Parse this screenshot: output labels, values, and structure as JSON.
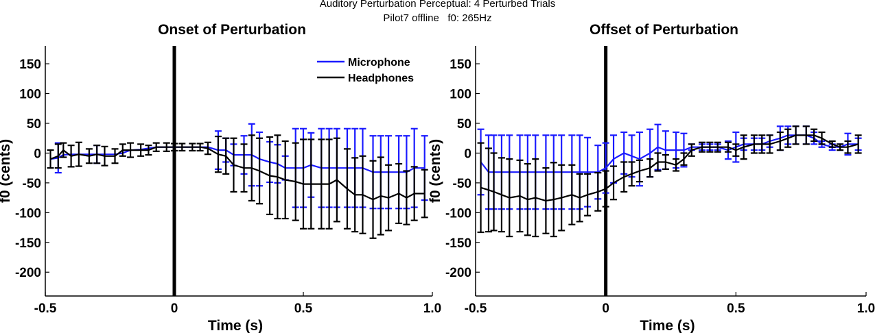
{
  "figure": {
    "title": "Auditory Perturbation Perceptual: 4 Perturbed Trials",
    "subtitle": "Pilot7 offline   f0: 265Hz"
  },
  "colors": {
    "microphone": "#1a1aff",
    "headphones": "#000000",
    "axis": "#000000"
  },
  "chart_data": [
    {
      "type": "line",
      "title": "Onset of Perturbation",
      "xlabel": "Time (s)",
      "ylabel": "f0 (cents)",
      "xlim": [
        -0.5,
        1.0
      ],
      "ylim": [
        -240,
        180
      ],
      "xticks": [
        -0.5,
        0,
        0.5,
        1.0
      ],
      "xtick_labels": [
        "-0.5",
        "0",
        "0.5",
        "1.0"
      ],
      "yticks": [
        150,
        100,
        50,
        0,
        -50,
        -100,
        -150,
        -200
      ],
      "ytick_labels": [
        "150",
        "100",
        "50",
        "0",
        "-50",
        "-100",
        "-150",
        "-200"
      ],
      "vline_x": 0,
      "legend": {
        "placement": "top-right",
        "entries": [
          "Microphone",
          "Headphones"
        ]
      },
      "series": [
        {
          "name": "Microphone",
          "color": "#1a1aff",
          "x": [
            -0.48,
            -0.45,
            -0.43,
            -0.4,
            -0.37,
            -0.33,
            -0.3,
            -0.27,
            -0.23,
            -0.2,
            -0.17,
            -0.13,
            -0.1,
            -0.07,
            -0.03,
            0,
            0.03,
            0.07,
            0.1,
            0.13,
            0.17,
            0.2,
            0.23,
            0.27,
            0.3,
            0.33,
            0.37,
            0.4,
            0.43,
            0.47,
            0.5,
            0.53,
            0.57,
            0.6,
            0.63,
            0.67,
            0.7,
            0.73,
            0.77,
            0.8,
            0.83,
            0.87,
            0.9,
            0.93,
            0.97
          ],
          "y": [
            -10,
            -8,
            -3,
            -2,
            -2,
            -2,
            -2,
            -2,
            -2,
            0,
            5,
            6,
            8,
            10,
            10,
            10,
            10,
            10,
            10,
            10,
            5,
            5,
            -3,
            -3,
            -3,
            -10,
            -15,
            -18,
            -25,
            -25,
            -25,
            -20,
            -25,
            -25,
            -25,
            -25,
            -25,
            -25,
            -32,
            -32,
            -32,
            -32,
            -32,
            -25,
            -25
          ],
          "err": [
            0,
            25,
            0,
            0,
            0,
            0,
            15,
            0,
            0,
            0,
            0,
            0,
            0,
            0,
            0,
            0,
            0,
            0,
            0,
            0,
            32,
            20,
            18,
            32,
            52,
            45,
            34,
            32,
            20,
            66,
            66,
            54,
            66,
            66,
            66,
            66,
            66,
            66,
            61,
            61,
            61,
            61,
            61,
            66,
            54
          ]
        },
        {
          "name": "Headphones",
          "color": "#000000",
          "x": [
            -0.48,
            -0.45,
            -0.43,
            -0.4,
            -0.37,
            -0.33,
            -0.3,
            -0.27,
            -0.23,
            -0.2,
            -0.17,
            -0.13,
            -0.1,
            -0.07,
            -0.03,
            0,
            0.03,
            0.07,
            0.1,
            0.13,
            0.17,
            0.2,
            0.23,
            0.27,
            0.3,
            0.33,
            0.37,
            0.4,
            0.43,
            0.47,
            0.5,
            0.53,
            0.57,
            0.6,
            0.63,
            0.67,
            0.7,
            0.73,
            0.77,
            0.8,
            0.83,
            0.87,
            0.9,
            0.93,
            0.97
          ],
          "y": [
            -10,
            -5,
            5,
            -5,
            -2,
            -5,
            -2,
            -5,
            -5,
            5,
            5,
            5,
            5,
            10,
            10,
            10,
            10,
            10,
            10,
            8,
            -2,
            -5,
            -20,
            -25,
            -25,
            -30,
            -38,
            -40,
            -45,
            -48,
            -52,
            -52,
            -52,
            -52,
            -45,
            -60,
            -70,
            -70,
            -78,
            -72,
            -75,
            -68,
            -75,
            -68,
            -68
          ],
          "err": [
            15,
            20,
            12,
            18,
            20,
            12,
            15,
            16,
            12,
            10,
            12,
            10,
            8,
            7,
            7,
            6,
            6,
            6,
            6,
            10,
            30,
            30,
            45,
            40,
            55,
            55,
            65,
            70,
            65,
            65,
            75,
            75,
            75,
            75,
            70,
            67,
            62,
            65,
            65,
            65,
            55,
            50,
            45,
            45,
            40
          ]
        }
      ]
    },
    {
      "type": "line",
      "title": "Offset of Perturbation",
      "xlabel": "Time (s)",
      "ylabel": "f0 (cents)",
      "xlim": [
        -0.5,
        1.0
      ],
      "ylim": [
        -240,
        180
      ],
      "xticks": [
        -0.5,
        0,
        0.5,
        1.0
      ],
      "xtick_labels": [
        "-0.5",
        "0",
        "0.5",
        "1.0"
      ],
      "yticks": [
        150,
        100,
        50,
        0,
        -50,
        -100,
        -150,
        -200
      ],
      "ytick_labels": [
        "150",
        "100",
        "50",
        "0",
        "-50",
        "-100",
        "-150",
        "-200"
      ],
      "vline_x": 0,
      "series": [
        {
          "name": "Microphone",
          "color": "#1a1aff",
          "x": [
            -0.48,
            -0.45,
            -0.43,
            -0.4,
            -0.37,
            -0.33,
            -0.3,
            -0.27,
            -0.23,
            -0.2,
            -0.17,
            -0.13,
            -0.1,
            -0.07,
            -0.03,
            0,
            0.03,
            0.07,
            0.1,
            0.13,
            0.17,
            0.2,
            0.23,
            0.27,
            0.3,
            0.33,
            0.37,
            0.4,
            0.43,
            0.47,
            0.5,
            0.53,
            0.57,
            0.6,
            0.63,
            0.67,
            0.7,
            0.73,
            0.77,
            0.8,
            0.83,
            0.87,
            0.9,
            0.93,
            0.97
          ],
          "y": [
            -15,
            -32,
            -32,
            -32,
            -32,
            -32,
            -32,
            -32,
            -32,
            -32,
            -32,
            -32,
            -32,
            -32,
            -32,
            -25,
            -10,
            0,
            -5,
            -10,
            0,
            10,
            5,
            5,
            5,
            10,
            10,
            10,
            10,
            5,
            10,
            15,
            15,
            15,
            20,
            25,
            30,
            30,
            30,
            25,
            15,
            10,
            10,
            15,
            15
          ],
          "err": [
            55,
            62,
            62,
            62,
            62,
            62,
            62,
            62,
            62,
            62,
            62,
            62,
            62,
            58,
            45,
            42,
            40,
            35,
            35,
            45,
            40,
            38,
            32,
            30,
            28,
            5,
            5,
            5,
            5,
            15,
            25,
            10,
            10,
            10,
            10,
            20,
            15,
            15,
            15,
            10,
            5,
            5,
            5,
            18,
            10
          ]
        },
        {
          "name": "Headphones",
          "color": "#000000",
          "x": [
            -0.48,
            -0.45,
            -0.43,
            -0.4,
            -0.37,
            -0.33,
            -0.3,
            -0.27,
            -0.23,
            -0.2,
            -0.17,
            -0.13,
            -0.1,
            -0.07,
            -0.03,
            0,
            0.03,
            0.07,
            0.1,
            0.13,
            0.17,
            0.2,
            0.23,
            0.27,
            0.3,
            0.33,
            0.37,
            0.4,
            0.43,
            0.47,
            0.5,
            0.53,
            0.57,
            0.6,
            0.63,
            0.67,
            0.7,
            0.73,
            0.77,
            0.8,
            0.83,
            0.87,
            0.9,
            0.93,
            0.97
          ],
          "y": [
            -58,
            -62,
            -65,
            -70,
            -75,
            -72,
            -78,
            -75,
            -80,
            -78,
            -75,
            -70,
            -75,
            -70,
            -65,
            -60,
            -50,
            -40,
            -35,
            -30,
            -25,
            -15,
            -15,
            -20,
            -10,
            5,
            10,
            10,
            10,
            10,
            5,
            10,
            15,
            15,
            15,
            20,
            25,
            30,
            30,
            30,
            25,
            15,
            10,
            10,
            15
          ],
          "err": [
            75,
            70,
            65,
            62,
            65,
            60,
            60,
            65,
            55,
            62,
            55,
            50,
            40,
            35,
            32,
            30,
            28,
            25,
            20,
            18,
            15,
            15,
            12,
            10,
            10,
            10,
            8,
            8,
            8,
            8,
            10,
            20,
            15,
            15,
            15,
            15,
            15,
            15,
            15,
            10,
            10,
            5,
            5,
            10,
            15
          ]
        }
      ]
    }
  ]
}
